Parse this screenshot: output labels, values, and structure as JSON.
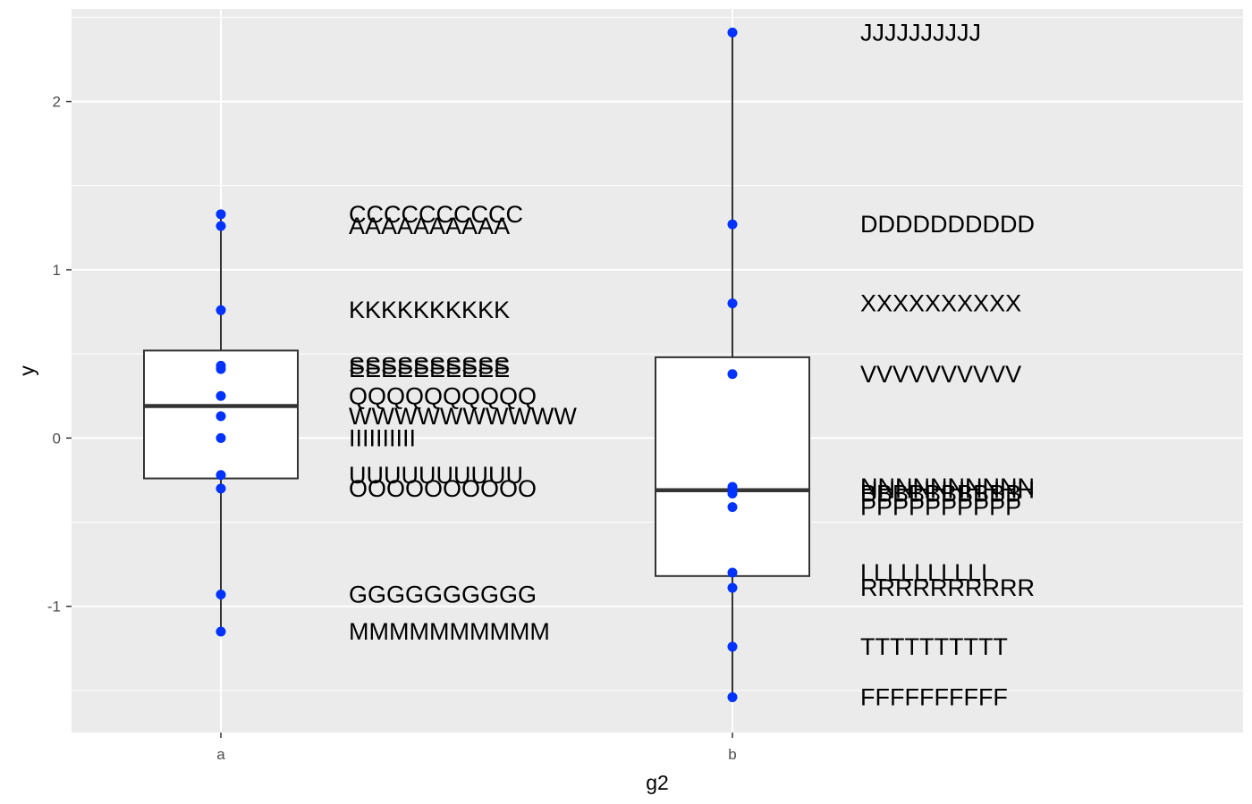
{
  "chart_data": {
    "type": "boxplot",
    "xlabel": "g2",
    "ylabel": "y",
    "categories": [
      "a",
      "b"
    ],
    "ylim": [
      -1.75,
      2.55
    ],
    "y_ticks": [
      -1,
      0,
      1,
      2
    ],
    "y_tick_labels": [
      "-1",
      "0",
      "1",
      "2"
    ],
    "grid": true,
    "panel_color": "#ebebeb",
    "point_color": "#0033ff",
    "boxes": [
      {
        "category": "a",
        "lower_whisker": -1.15,
        "q1": -0.24,
        "median": 0.19,
        "q3": 0.52,
        "upper_whisker": 1.33
      },
      {
        "category": "b",
        "lower_whisker": -1.54,
        "q1": -0.82,
        "median": -0.31,
        "q3": 0.48,
        "upper_whisker": 2.41
      }
    ],
    "points": [
      {
        "category": "a",
        "y": 1.33,
        "label": "CCCCCCCCCC"
      },
      {
        "category": "a",
        "y": 1.26,
        "label": "AAAAAAAAAA"
      },
      {
        "category": "a",
        "y": 0.76,
        "label": "KKKKKKKKKK"
      },
      {
        "category": "a",
        "y": 0.43,
        "label": "SSSSSSSSSS"
      },
      {
        "category": "a",
        "y": 0.41,
        "label": "EEEEEEEEEE"
      },
      {
        "category": "a",
        "y": 0.25,
        "label": "QQQQQQQQQQ"
      },
      {
        "category": "a",
        "y": 0.13,
        "label": "WWWWWWWWWW"
      },
      {
        "category": "a",
        "y": 0.0,
        "label": "IIIIIIIIII"
      },
      {
        "category": "a",
        "y": -0.22,
        "label": "UUUUUUUUUU"
      },
      {
        "category": "a",
        "y": -0.3,
        "label": "OOOOOOOOOO"
      },
      {
        "category": "a",
        "y": -0.93,
        "label": "GGGGGGGGGG"
      },
      {
        "category": "a",
        "y": -1.15,
        "label": "MMMMMMMMMM"
      },
      {
        "category": "b",
        "y": 2.41,
        "label": "JJJJJJJJJJ"
      },
      {
        "category": "b",
        "y": 1.27,
        "label": "DDDDDDDDDD"
      },
      {
        "category": "b",
        "y": 0.8,
        "label": "XXXXXXXXXX"
      },
      {
        "category": "b",
        "y": 0.38,
        "label": "VVVVVVVVVV"
      },
      {
        "category": "b",
        "y": -0.29,
        "label": "NNNNNNNNNN"
      },
      {
        "category": "b",
        "y": -0.31,
        "label": "HHHHHHHHHH"
      },
      {
        "category": "b",
        "y": -0.33,
        "label": "BBBBBBBBBB"
      },
      {
        "category": "b",
        "y": -0.41,
        "label": "PPPPPPPPPP"
      },
      {
        "category": "b",
        "y": -0.8,
        "label": "LLLLLLLLLL"
      },
      {
        "category": "b",
        "y": -0.89,
        "label": "RRRRRRRRRR"
      },
      {
        "category": "b",
        "y": -1.24,
        "label": "TTTTTTTTTT"
      },
      {
        "category": "b",
        "y": -1.54,
        "label": "FFFFFFFFFF"
      }
    ]
  }
}
